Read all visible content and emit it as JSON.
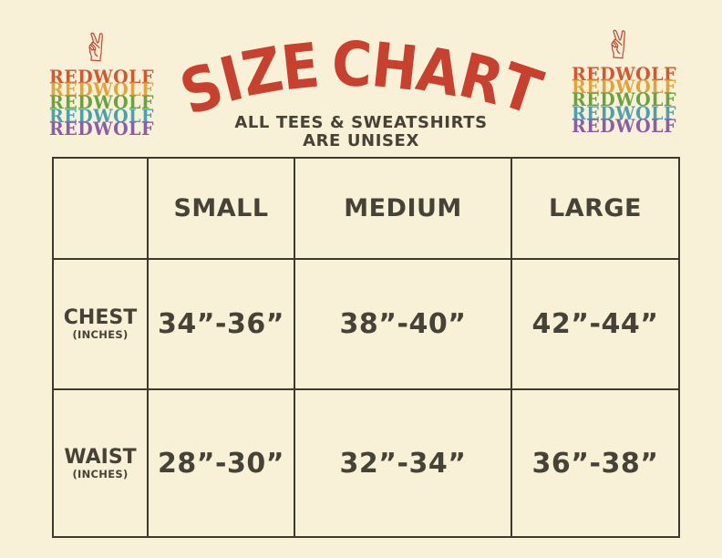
{
  "colors": {
    "background": "#f8f1d7",
    "title_red": "#c8402e",
    "hand_red": "#cd4530",
    "text_charcoal": "#474238",
    "table_border": "#3d392f",
    "wordmark_rainbow": [
      "#d8562e",
      "#e2a33c",
      "#6ba23f",
      "#4c9fad",
      "#8a5ea6"
    ]
  },
  "icons": {
    "peace_hand": "✌"
  },
  "logo": {
    "word": "REDWOLF",
    "colors": [
      "#d8562e",
      "#e2a33c",
      "#6ba23f",
      "#4c9fad",
      "#8a5ea6"
    ]
  },
  "header": {
    "title": "SIZE CHART",
    "subtitle_line1": "ALL TEES & SWEATSHIRTS",
    "subtitle_line2": "ARE UNISEX"
  },
  "table": {
    "columns": [
      "",
      "SMALL",
      "MEDIUM",
      "LARGE"
    ],
    "rows": [
      {
        "label": "CHEST",
        "unit": "(INCHES)",
        "values": [
          "34”-36”",
          "38”-40”",
          "42”-44”"
        ]
      },
      {
        "label": "WAIST",
        "unit": "(INCHES)",
        "values": [
          "28”-30”",
          "32”-34”",
          "36”-38”"
        ]
      }
    ]
  },
  "chart_data": {
    "type": "table",
    "title": "SIZE CHART",
    "subtitle": "ALL TEES & SWEATSHIRTS ARE UNISEX",
    "columns": [
      "",
      "SMALL",
      "MEDIUM",
      "LARGE"
    ],
    "rows": [
      [
        "CHEST (INCHES)",
        "34”-36”",
        "38”-40”",
        "42”-44”"
      ],
      [
        "WAIST (INCHES)",
        "28”-30”",
        "32”-34”",
        "36”-38”"
      ]
    ]
  }
}
